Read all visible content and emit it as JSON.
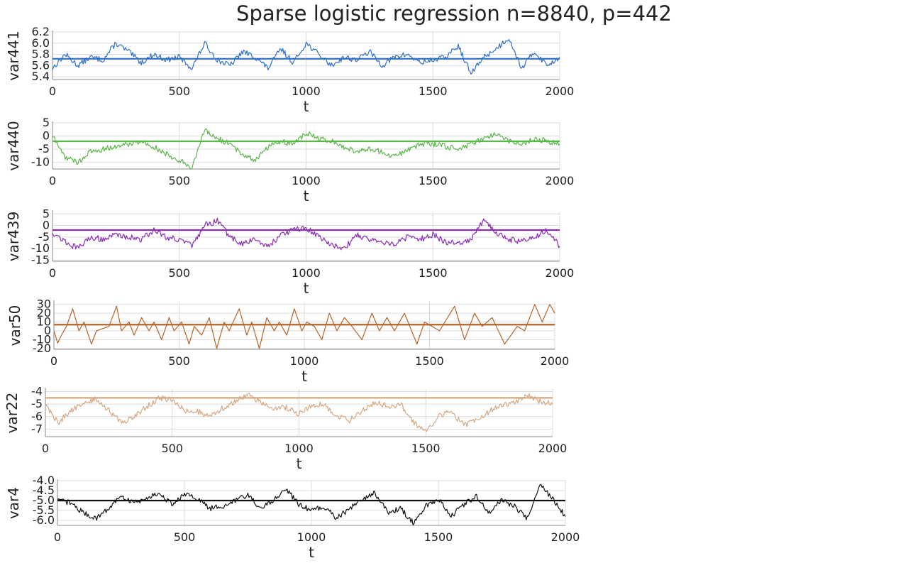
{
  "title": "Sparse logistic regression n=8840, p=442",
  "chart_data": [
    {
      "type": "line",
      "ylabel": "var441",
      "xlabel": "t",
      "color": "#2f6fc7",
      "mean": 5.72,
      "xlim": [
        0,
        2000
      ],
      "ylim": [
        5.35,
        6.2
      ],
      "xticks": [
        0,
        500,
        1000,
        1500,
        2000
      ],
      "yticks": [
        5.4,
        5.6,
        5.8,
        6.0,
        6.2
      ],
      "ytick_labels": [
        "5.4",
        "5.6",
        "5.8",
        "6.0",
        "6.2"
      ],
      "series": [
        {
          "x": [
            0,
            50,
            100,
            150,
            200,
            250,
            300,
            350,
            400,
            450,
            500,
            550,
            600,
            650,
            700,
            750,
            800,
            850,
            900,
            950,
            1000,
            1050,
            1100,
            1150,
            1200,
            1250,
            1300,
            1350,
            1400,
            1450,
            1500,
            1550,
            1600,
            1650,
            1700,
            1750,
            1800,
            1850,
            1900,
            1950,
            2000
          ],
          "y": [
            5.55,
            5.8,
            5.6,
            5.75,
            5.7,
            6.0,
            5.85,
            5.65,
            5.8,
            5.7,
            5.75,
            5.55,
            6.0,
            5.7,
            5.6,
            5.85,
            5.75,
            5.55,
            5.9,
            5.65,
            6.0,
            5.8,
            5.6,
            5.75,
            5.7,
            5.85,
            5.6,
            5.75,
            5.8,
            5.65,
            5.7,
            5.75,
            5.95,
            5.45,
            5.75,
            5.9,
            6.1,
            5.55,
            5.85,
            5.6,
            5.75
          ]
        }
      ]
    },
    {
      "type": "line",
      "ylabel": "var440",
      "xlabel": "t",
      "color": "#5ab54b",
      "mean": -2,
      "xlim": [
        0,
        2000
      ],
      "ylim": [
        -12.5,
        5
      ],
      "xticks": [
        0,
        500,
        1000,
        1500,
        2000
      ],
      "yticks": [
        -10,
        -5,
        0,
        5
      ],
      "ytick_labels": [
        "-10",
        "-5",
        "0",
        "5"
      ],
      "series": [
        {
          "x": [
            0,
            50,
            100,
            150,
            200,
            250,
            300,
            350,
            400,
            450,
            500,
            550,
            600,
            650,
            700,
            750,
            800,
            850,
            900,
            950,
            1000,
            1050,
            1100,
            1150,
            1200,
            1250,
            1300,
            1350,
            1400,
            1450,
            1500,
            1550,
            1600,
            1650,
            1700,
            1750,
            1800,
            1850,
            1900,
            1950,
            2000
          ],
          "y": [
            0,
            -8,
            -10,
            -6,
            -5,
            -4,
            -3,
            -2,
            -4,
            -7,
            -9,
            -12,
            2,
            -1,
            -3,
            -7,
            -9,
            -4,
            -2,
            -3,
            1,
            -1,
            -2,
            -4,
            -6,
            -5,
            -6,
            -8,
            -5,
            -3,
            -3,
            -4,
            -5,
            -3,
            -1,
            1,
            -2,
            -3,
            -1,
            -2,
            -3
          ]
        }
      ]
    },
    {
      "type": "line",
      "ylabel": "var439",
      "xlabel": "t",
      "color": "#8a2bb5",
      "mean": -2,
      "xlim": [
        0,
        2000
      ],
      "ylim": [
        -15.5,
        6
      ],
      "xticks": [
        0,
        500,
        1000,
        1500,
        2000
      ],
      "yticks": [
        -15,
        -10,
        -5,
        0,
        5
      ],
      "ytick_labels": [
        "-15",
        "-10",
        "-5",
        "0",
        "5"
      ],
      "series": [
        {
          "x": [
            0,
            50,
            100,
            150,
            200,
            250,
            300,
            350,
            400,
            450,
            500,
            550,
            600,
            650,
            700,
            750,
            800,
            850,
            900,
            950,
            1000,
            1050,
            1100,
            1150,
            1200,
            1250,
            1300,
            1350,
            1400,
            1450,
            1500,
            1550,
            1600,
            1650,
            1700,
            1750,
            1800,
            1850,
            1900,
            1950,
            2000
          ],
          "y": [
            -3,
            -7,
            -10,
            -5,
            -6,
            -4,
            -5,
            -6,
            -2,
            -5,
            -6,
            -9,
            0,
            2,
            -5,
            -8,
            -6,
            -9,
            -4,
            -2,
            -1,
            -5,
            -8,
            -10,
            -4,
            -6,
            -7,
            -8,
            -5,
            -6,
            -4,
            -7,
            -8,
            -6,
            2,
            -3,
            -6,
            -7,
            -5,
            -2,
            -9
          ]
        }
      ]
    },
    {
      "type": "line",
      "ylabel": "var50",
      "xlabel": "t",
      "color": "#b5652a",
      "mean": 7,
      "xlim": [
        0,
        2000
      ],
      "ylim": [
        -21,
        33
      ],
      "xticks": [
        0,
        500,
        1000,
        1500,
        2000
      ],
      "yticks": [
        -20,
        -10,
        0,
        10,
        20,
        30
      ],
      "ytick_labels": [
        "-20",
        "-10",
        "0",
        "10",
        "20",
        "30"
      ],
      "series": [
        {
          "x": [
            0,
            15,
            30,
            50,
            75,
            100,
            120,
            150,
            170,
            220,
            250,
            270,
            300,
            320,
            350,
            380,
            400,
            430,
            460,
            480,
            510,
            540,
            560,
            590,
            620,
            650,
            680,
            700,
            740,
            770,
            790,
            820,
            850,
            880,
            900,
            930,
            960,
            990,
            1010,
            1040,
            1070,
            1100,
            1130,
            1160,
            1190,
            1230,
            1270,
            1300,
            1330,
            1360,
            1400,
            1450,
            1480,
            1510,
            1540,
            1600,
            1640,
            1680,
            1710,
            1750,
            1800,
            1850,
            1880,
            1920,
            1950,
            1980,
            2000
          ],
          "y": [
            0,
            -14,
            -5,
            5,
            25,
            0,
            10,
            -15,
            0,
            5,
            28,
            0,
            10,
            -5,
            15,
            0,
            10,
            -10,
            15,
            0,
            10,
            -15,
            5,
            -5,
            15,
            -20,
            10,
            0,
            25,
            -5,
            10,
            -20,
            15,
            0,
            10,
            -5,
            25,
            0,
            10,
            5,
            -10,
            20,
            0,
            15,
            5,
            -10,
            20,
            0,
            15,
            0,
            20,
            -15,
            10,
            5,
            0,
            28,
            -10,
            20,
            5,
            15,
            -15,
            5,
            0,
            30,
            10,
            30,
            20
          ]
        }
      ]
    },
    {
      "type": "line",
      "ylabel": "var22",
      "xlabel": "t",
      "color": "#d4a882",
      "mean": -4.5,
      "xlim": [
        0,
        2000
      ],
      "ylim": [
        -7.6,
        -3.8
      ],
      "xticks": [
        0,
        500,
        1000,
        1500,
        2000
      ],
      "yticks": [
        -7,
        -6,
        -5,
        -4
      ],
      "ytick_labels": [
        "-7",
        "-6",
        "-5",
        "-4"
      ],
      "series": [
        {
          "x": [
            0,
            50,
            100,
            150,
            200,
            250,
            300,
            350,
            400,
            450,
            500,
            550,
            600,
            650,
            700,
            750,
            800,
            850,
            900,
            950,
            1000,
            1050,
            1100,
            1150,
            1200,
            1250,
            1300,
            1350,
            1400,
            1450,
            1500,
            1550,
            1600,
            1650,
            1700,
            1750,
            1800,
            1850,
            1900,
            1950,
            2000
          ],
          "y": [
            -5,
            -6.5,
            -5.5,
            -5,
            -4.6,
            -5.5,
            -6.5,
            -6,
            -5.2,
            -4.5,
            -4.7,
            -5.5,
            -5.6,
            -6,
            -5.3,
            -4.8,
            -4.2,
            -4.9,
            -5.3,
            -5.3,
            -5.8,
            -5.1,
            -5,
            -6,
            -6.3,
            -5.5,
            -4.8,
            -5.2,
            -5,
            -6.4,
            -7.2,
            -6,
            -5.6,
            -6.7,
            -6.2,
            -5.6,
            -5,
            -4.9,
            -4.3,
            -4.8,
            -5
          ]
        }
      ]
    },
    {
      "type": "line",
      "ylabel": "var4",
      "xlabel": "t",
      "color": "#111111",
      "mean": -5,
      "xlim": [
        0,
        2000
      ],
      "ylim": [
        -6.25,
        -4.0
      ],
      "xticks": [
        0,
        500,
        1000,
        1500,
        2000
      ],
      "yticks": [
        -6.0,
        -5.5,
        -5.0,
        -4.5,
        -4.0
      ],
      "ytick_labels": [
        "-6.0",
        "-5.5",
        "-5.0",
        "-4.5",
        "-4.0"
      ],
      "series": [
        {
          "x": [
            0,
            50,
            100,
            150,
            200,
            250,
            300,
            350,
            400,
            450,
            500,
            550,
            600,
            650,
            700,
            750,
            800,
            850,
            900,
            950,
            1000,
            1050,
            1100,
            1150,
            1200,
            1250,
            1300,
            1350,
            1400,
            1450,
            1500,
            1550,
            1600,
            1650,
            1700,
            1750,
            1800,
            1850,
            1900,
            1950,
            2000
          ],
          "y": [
            -5,
            -5.1,
            -5.6,
            -5.9,
            -5.4,
            -4.8,
            -5.1,
            -4.9,
            -4.6,
            -5.2,
            -4.7,
            -4.9,
            -5.4,
            -5.3,
            -5,
            -4.7,
            -5.4,
            -5,
            -4.4,
            -5.2,
            -5.5,
            -5.3,
            -5.9,
            -5.4,
            -5,
            -4.6,
            -5.6,
            -5.4,
            -6.1,
            -5.3,
            -4.9,
            -5.8,
            -5.2,
            -4.8,
            -5.6,
            -5,
            -5.3,
            -5.9,
            -4.2,
            -4.9,
            -5.8
          ]
        }
      ]
    }
  ]
}
